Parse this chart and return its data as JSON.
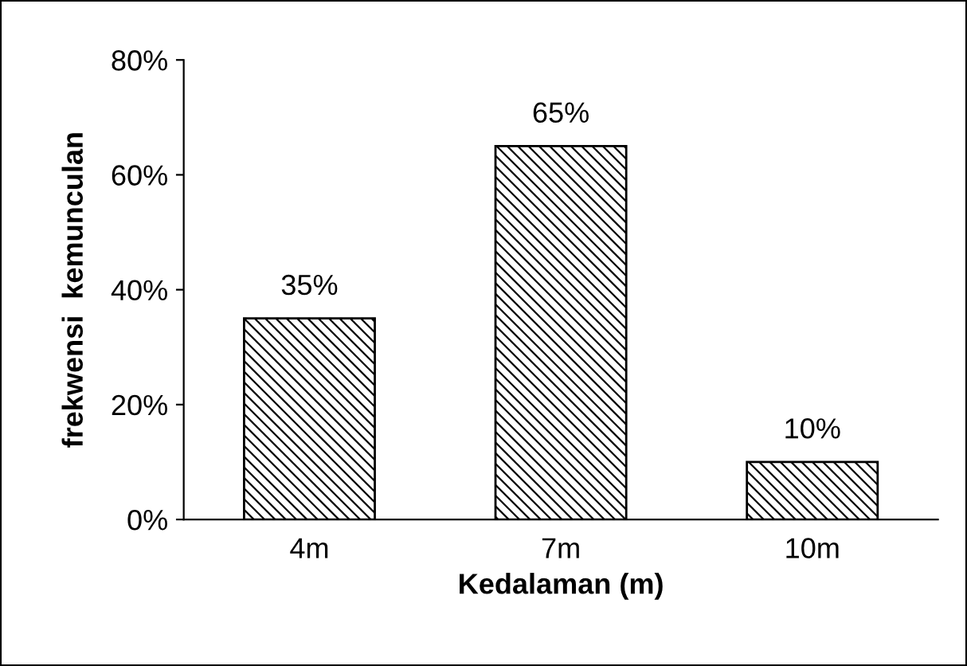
{
  "chart_data": {
    "type": "bar",
    "xlabel": "Kedalaman (m)",
    "ylabel": "frekwensi  kemunculan",
    "categories": [
      "4m",
      "7m",
      "10m"
    ],
    "values": [
      35,
      65,
      10
    ],
    "value_labels": [
      "35%",
      "65%",
      "10%"
    ],
    "color": "#000000",
    "ylim": [
      0,
      80
    ],
    "yticks": [
      {
        "value": 0,
        "label": "0%"
      },
      {
        "value": 20,
        "label": "20%"
      },
      {
        "value": 40,
        "label": "40%"
      },
      {
        "value": 60,
        "label": "60%"
      },
      {
        "value": 80,
        "label": "80%"
      }
    ],
    "grid": false,
    "legend": false
  }
}
